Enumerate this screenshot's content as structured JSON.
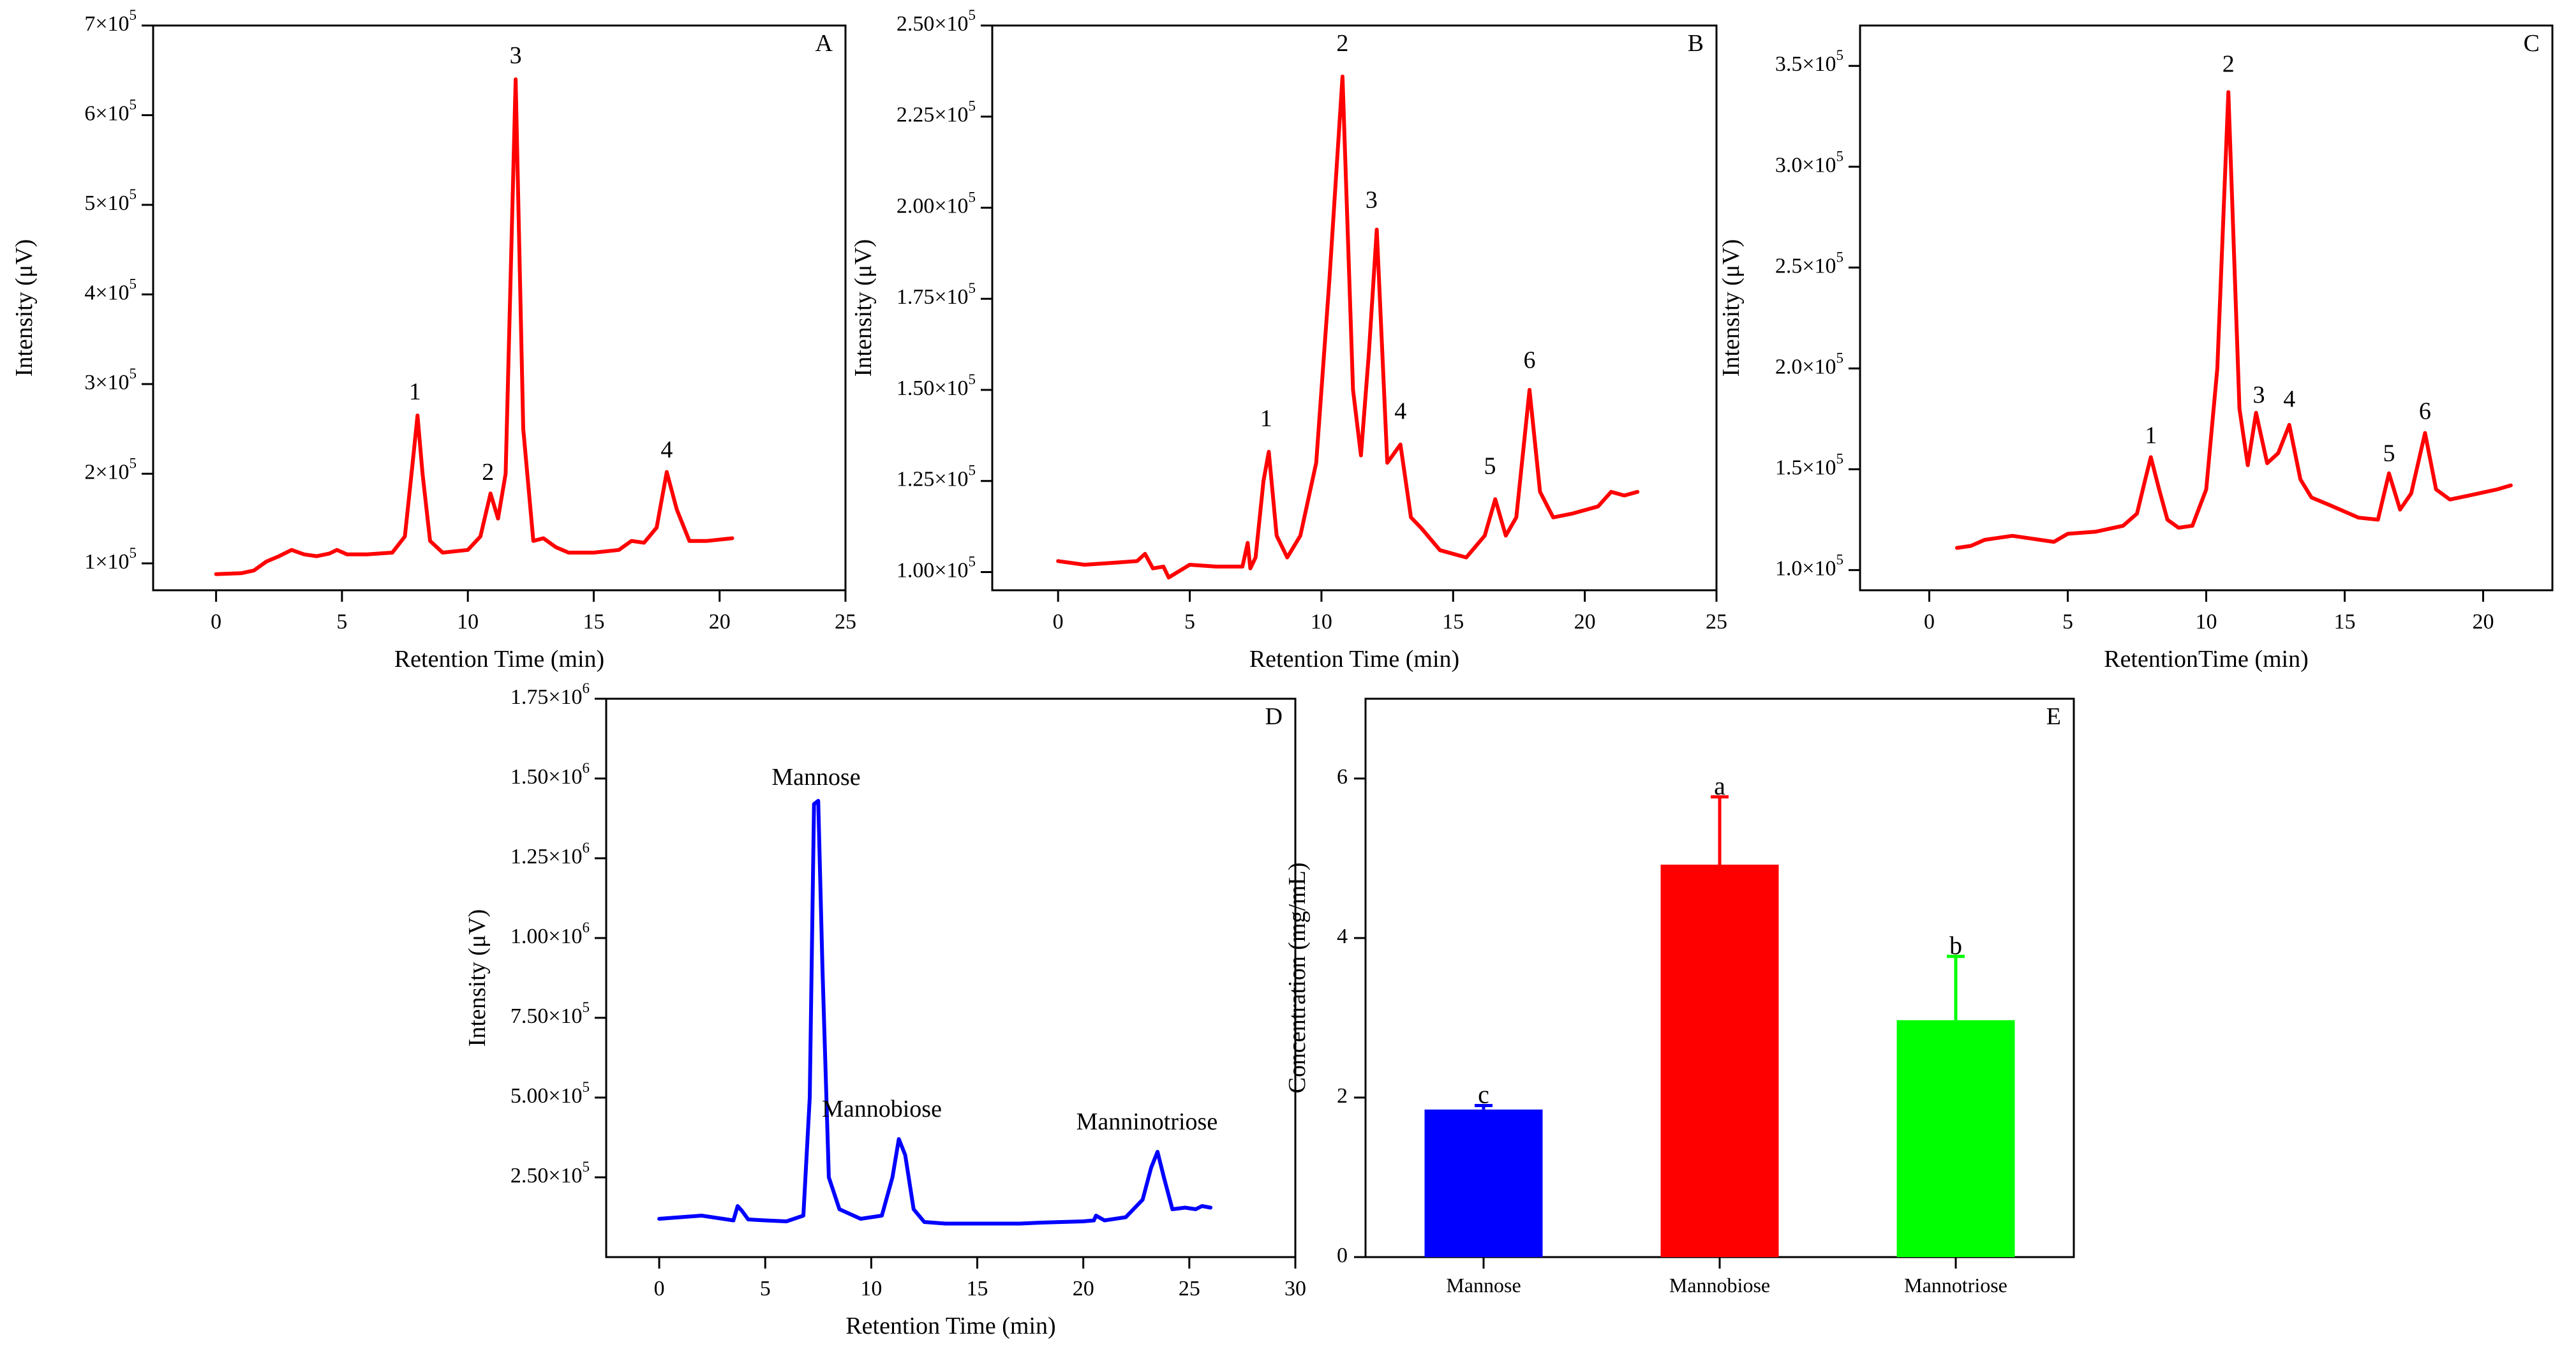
{
  "chart_data": [
    {
      "panel": "A",
      "type": "line",
      "xlabel": "Retention Time (min)",
      "ylabel": "Intensity (μV)",
      "xlim": [
        -2.5,
        25
      ],
      "ylim": [
        70000,
        700000
      ],
      "xticks": [
        0,
        5,
        10,
        15,
        20,
        25
      ],
      "yticks": [
        {
          "value": 100000,
          "mantissa": "1",
          "exp": "5"
        },
        {
          "value": 200000,
          "mantissa": "2",
          "exp": "5"
        },
        {
          "value": 300000,
          "mantissa": "3",
          "exp": "5"
        },
        {
          "value": 400000,
          "mantissa": "4",
          "exp": "5"
        },
        {
          "value": 500000,
          "mantissa": "5",
          "exp": "5"
        },
        {
          "value": 600000,
          "mantissa": "6",
          "exp": "5"
        },
        {
          "value": 700000,
          "mantissa": "7",
          "exp": "5"
        }
      ],
      "color": "#ff0000",
      "series": [
        {
          "x": [
            0,
            1,
            1.5,
            2,
            2.5,
            3,
            3.5,
            4,
            4.5,
            4.8,
            5.2,
            6,
            7,
            7.5,
            7.8,
            8.0,
            8.2,
            8.5,
            9,
            10,
            10.5,
            10.9,
            11.2,
            11.5,
            11.9,
            12.2,
            12.6,
            13.0,
            13.5,
            14,
            15,
            16,
            16.5,
            17,
            17.5,
            17.9,
            18.3,
            18.8,
            19.5,
            20.5
          ],
          "y": [
            88000,
            89000,
            92000,
            102000,
            108000,
            115000,
            110000,
            108000,
            111000,
            115000,
            110000,
            110000,
            112000,
            130000,
            210000,
            265000,
            200000,
            125000,
            112000,
            115000,
            130000,
            178000,
            150000,
            200000,
            640000,
            250000,
            125000,
            128000,
            118000,
            112000,
            112000,
            115000,
            125000,
            123000,
            140000,
            202000,
            160000,
            125000,
            125000,
            128000
          ]
        }
      ],
      "annotations": [
        {
          "text": "1",
          "x": 7.9,
          "y": 283000
        },
        {
          "text": "2",
          "x": 10.8,
          "y": 193000
        },
        {
          "text": "3",
          "x": 11.9,
          "y": 658000
        },
        {
          "text": "4",
          "x": 17.9,
          "y": 218000
        }
      ],
      "panel_label": "A"
    },
    {
      "panel": "B",
      "type": "line",
      "xlabel": "Retention Time (min)",
      "ylabel": "Intensity (μV)",
      "xlim": [
        -2.5,
        25
      ],
      "ylim": [
        95000,
        250000
      ],
      "xticks": [
        0,
        5,
        10,
        15,
        20,
        25
      ],
      "yticks": [
        {
          "value": 100000,
          "mantissa": "1.00",
          "exp": "5"
        },
        {
          "value": 125000,
          "mantissa": "1.25",
          "exp": "5"
        },
        {
          "value": 150000,
          "mantissa": "1.50",
          "exp": "5"
        },
        {
          "value": 175000,
          "mantissa": "1.75",
          "exp": "5"
        },
        {
          "value": 200000,
          "mantissa": "2.00",
          "exp": "5"
        },
        {
          "value": 225000,
          "mantissa": "2.25",
          "exp": "5"
        },
        {
          "value": 250000,
          "mantissa": "2.50",
          "exp": "5"
        }
      ],
      "color": "#ff0000",
      "series": [
        {
          "x": [
            0,
            1,
            2,
            3,
            3.3,
            3.6,
            4,
            4.2,
            5,
            6,
            7,
            7.2,
            7.3,
            7.5,
            7.8,
            8.0,
            8.3,
            8.7,
            9.2,
            9.8,
            10.3,
            10.8,
            11.2,
            11.5,
            11.8,
            12.1,
            12.5,
            13.0,
            13.4,
            13.8,
            14.5,
            15.5,
            16.2,
            16.6,
            17.0,
            17.4,
            17.9,
            18.3,
            18.8,
            19.5,
            20.5,
            21.0,
            21.5,
            22.0
          ],
          "y": [
            103000,
            102000,
            102500,
            103000,
            105000,
            101000,
            101500,
            98500,
            102000,
            101500,
            101500,
            108000,
            101000,
            104000,
            125000,
            133000,
            110000,
            104000,
            110000,
            130000,
            180000,
            236000,
            150000,
            132000,
            160000,
            194000,
            130000,
            135000,
            115000,
            112000,
            106000,
            104000,
            110000,
            120000,
            110000,
            115000,
            150000,
            122000,
            115000,
            116000,
            118000,
            122000,
            121000,
            122000
          ]
        }
      ],
      "annotations": [
        {
          "text": "1",
          "x": 7.9,
          "y": 140000
        },
        {
          "text": "2",
          "x": 10.8,
          "y": 243000
        },
        {
          "text": "3",
          "x": 11.9,
          "y": 200000
        },
        {
          "text": "4",
          "x": 13.0,
          "y": 142000
        },
        {
          "text": "5",
          "x": 16.4,
          "y": 127000
        },
        {
          "text": "6",
          "x": 17.9,
          "y": 156000
        }
      ],
      "panel_label": "B"
    },
    {
      "panel": "C",
      "type": "line",
      "xlabel": "RetentionTime (min)",
      "ylabel": "Intensity (μV)",
      "xlim": [
        -2.5,
        22.5
      ],
      "ylim": [
        90000,
        370000
      ],
      "xticks": [
        0,
        5,
        10,
        15,
        20
      ],
      "yticks": [
        {
          "value": 100000,
          "mantissa": "1.0",
          "exp": "5"
        },
        {
          "value": 150000,
          "mantissa": "1.5",
          "exp": "5"
        },
        {
          "value": 200000,
          "mantissa": "2.0",
          "exp": "5"
        },
        {
          "value": 250000,
          "mantissa": "2.5",
          "exp": "5"
        },
        {
          "value": 300000,
          "mantissa": "3.0",
          "exp": "5"
        },
        {
          "value": 350000,
          "mantissa": "3.5",
          "exp": "5"
        }
      ],
      "color": "#ff0000",
      "series": [
        {
          "x": [
            1,
            1.5,
            2,
            2.5,
            3,
            3.5,
            4,
            4.5,
            5,
            6,
            7,
            7.5,
            7.8,
            8.0,
            8.3,
            8.6,
            9.0,
            9.5,
            10.0,
            10.4,
            10.8,
            11.2,
            11.5,
            11.8,
            12.2,
            12.6,
            13.0,
            13.4,
            13.8,
            14.5,
            15.5,
            16.2,
            16.6,
            17.0,
            17.4,
            17.9,
            18.3,
            18.8,
            19.5,
            20.5,
            21.0
          ],
          "y": [
            111000,
            112000,
            115000,
            116000,
            117000,
            116000,
            115000,
            114000,
            118000,
            119000,
            122000,
            128000,
            145000,
            156000,
            140000,
            125000,
            121000,
            122000,
            140000,
            200000,
            337000,
            180000,
            152000,
            178000,
            153000,
            158000,
            172000,
            145000,
            136000,
            132000,
            126000,
            125000,
            148000,
            130000,
            138000,
            168000,
            140000,
            135000,
            137000,
            140000,
            142000
          ]
        }
      ],
      "annotations": [
        {
          "text": "1",
          "x": 8.0,
          "y": 163000
        },
        {
          "text": "2",
          "x": 10.8,
          "y": 347000
        },
        {
          "text": "3",
          "x": 11.9,
          "y": 183000
        },
        {
          "text": "4",
          "x": 13.0,
          "y": 181000
        },
        {
          "text": "5",
          "x": 16.6,
          "y": 154000
        },
        {
          "text": "6",
          "x": 17.9,
          "y": 175000
        }
      ],
      "panel_label": "C"
    },
    {
      "panel": "D",
      "type": "line",
      "xlabel": "Retention Time (min)",
      "ylabel": "Intensity (μV)",
      "xlim": [
        -2.5,
        30
      ],
      "ylim": [
        0,
        1750000
      ],
      "xticks": [
        0,
        5,
        10,
        15,
        20,
        25,
        30
      ],
      "yticks": [
        {
          "value": 250000,
          "mantissa": "2.50",
          "exp": "5"
        },
        {
          "value": 500000,
          "mantissa": "5.00",
          "exp": "5"
        },
        {
          "value": 750000,
          "mantissa": "7.50",
          "exp": "5"
        },
        {
          "value": 1000000,
          "mantissa": "1.00",
          "exp": "6"
        },
        {
          "value": 1250000,
          "mantissa": "1.25",
          "exp": "6"
        },
        {
          "value": 1500000,
          "mantissa": "1.50",
          "exp": "6"
        },
        {
          "value": 1750000,
          "mantissa": "1.75",
          "exp": "6"
        }
      ],
      "color": "#0000ff",
      "series": [
        {
          "x": [
            0,
            1,
            2,
            3,
            3.5,
            3.7,
            3.9,
            4.2,
            5,
            6,
            6.8,
            7.1,
            7.3,
            7.5,
            7.7,
            8.0,
            8.5,
            9.5,
            10.5,
            11.0,
            11.3,
            11.6,
            12.0,
            12.5,
            13.5,
            15,
            17,
            18,
            20,
            20.5,
            20.6,
            21,
            22,
            22.8,
            23.2,
            23.5,
            23.8,
            24.2,
            24.8,
            25.3,
            25.6,
            26
          ],
          "y": [
            120000,
            125000,
            130000,
            120000,
            115000,
            160000,
            145000,
            118000,
            115000,
            112000,
            130000,
            500000,
            1420000,
            1430000,
            900000,
            250000,
            150000,
            120000,
            130000,
            250000,
            370000,
            320000,
            150000,
            110000,
            105000,
            105000,
            105000,
            108000,
            112000,
            115000,
            130000,
            115000,
            125000,
            180000,
            280000,
            330000,
            250000,
            150000,
            155000,
            150000,
            160000,
            155000
          ]
        }
      ],
      "annotations": [
        {
          "text": "Mannose",
          "x": 7.4,
          "y": 1480000
        },
        {
          "text": "Mannobiose",
          "x": 10.5,
          "y": 440000
        },
        {
          "text": "Manninotriose",
          "x": 23.0,
          "y": 400000
        }
      ],
      "panel_label": "D"
    },
    {
      "panel": "E",
      "type": "bar",
      "xlabel": "",
      "ylabel": "Concentration (mg/mL)",
      "ylim": [
        0,
        7
      ],
      "yticks": [
        0,
        2,
        4,
        6
      ],
      "categories": [
        "Mannose",
        "Mannobiose",
        "Mannotriose"
      ],
      "values": [
        1.85,
        4.92,
        2.97
      ],
      "errors": [
        0.05,
        0.85,
        0.8
      ],
      "colors": [
        "#0000ff",
        "#ff0000",
        "#00ff00"
      ],
      "significance": [
        "c",
        "a",
        "b"
      ],
      "panel_label": "E"
    }
  ]
}
